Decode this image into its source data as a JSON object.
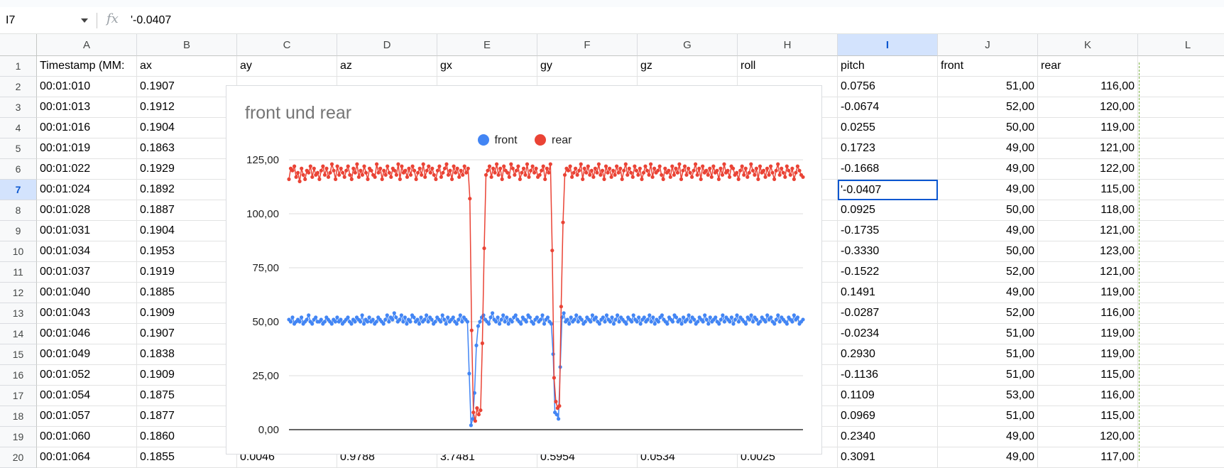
{
  "formula_bar": {
    "name_box": "I7",
    "fx_icon": "fx",
    "value": "'-0.0407"
  },
  "columns": [
    "A",
    "B",
    "C",
    "D",
    "E",
    "F",
    "G",
    "H",
    "I",
    "J",
    "K",
    "L"
  ],
  "selected_column": "I",
  "rows": [
    {
      "n": "1",
      "A": "Timestamp (MM:",
      "B": "ax",
      "C": "ay",
      "D": "az",
      "E": "gx",
      "F": "gy",
      "G": "gz",
      "H": "roll",
      "I": "pitch",
      "J": "front",
      "K": "rear"
    },
    {
      "n": "2",
      "A": "00:01:010",
      "B": "0.1907",
      "C": "",
      "D": "",
      "E": "",
      "F": "",
      "G": "",
      "H": "",
      "I": "0.0756",
      "J": "51,00",
      "K": "116,00"
    },
    {
      "n": "3",
      "A": "00:01:013",
      "B": "0.1912",
      "C": "",
      "D": "",
      "E": "",
      "F": "",
      "G": "",
      "H": "",
      "I": "-0.0674",
      "J": "52,00",
      "K": "120,00"
    },
    {
      "n": "4",
      "A": "00:01:016",
      "B": "0.1904",
      "C": "",
      "D": "",
      "E": "",
      "F": "",
      "G": "",
      "H": "",
      "I": "0.0255",
      "J": "50,00",
      "K": "119,00"
    },
    {
      "n": "5",
      "A": "00:01:019",
      "B": "0.1863",
      "C": "",
      "D": "",
      "E": "",
      "F": "",
      "G": "",
      "H": "",
      "I": "0.1723",
      "J": "49,00",
      "K": "121,00"
    },
    {
      "n": "6",
      "A": "00:01:022",
      "B": "0.1929",
      "C": "",
      "D": "",
      "E": "",
      "F": "",
      "G": "",
      "H": "",
      "I": "-0.1668",
      "J": "49,00",
      "K": "122,00"
    },
    {
      "n": "7",
      "A": "00:01:024",
      "B": "0.1892",
      "C": "",
      "D": "",
      "E": "",
      "F": "",
      "G": "",
      "H": "",
      "I": "'-0.0407",
      "J": "49,00",
      "K": "115,00"
    },
    {
      "n": "8",
      "A": "00:01:028",
      "B": "0.1887",
      "C": "",
      "D": "",
      "E": "",
      "F": "",
      "G": "",
      "H": "",
      "I": "0.0925",
      "J": "50,00",
      "K": "118,00"
    },
    {
      "n": "9",
      "A": "00:01:031",
      "B": "0.1904",
      "C": "",
      "D": "",
      "E": "",
      "F": "",
      "G": "",
      "H": "",
      "I": "-0.1735",
      "J": "49,00",
      "K": "121,00"
    },
    {
      "n": "10",
      "A": "00:01:034",
      "B": "0.1953",
      "C": "",
      "D": "",
      "E": "",
      "F": "",
      "G": "",
      "H": "",
      "I": "-0.3330",
      "J": "50,00",
      "K": "123,00"
    },
    {
      "n": "11",
      "A": "00:01:037",
      "B": "0.1919",
      "C": "",
      "D": "",
      "E": "",
      "F": "",
      "G": "",
      "H": "",
      "I": "-0.1522",
      "J": "52,00",
      "K": "121,00"
    },
    {
      "n": "12",
      "A": "00:01:040",
      "B": "0.1885",
      "C": "",
      "D": "",
      "E": "",
      "F": "",
      "G": "",
      "H": "",
      "I": "0.1491",
      "J": "49,00",
      "K": "119,00"
    },
    {
      "n": "13",
      "A": "00:01:043",
      "B": "0.1909",
      "C": "",
      "D": "",
      "E": "",
      "F": "",
      "G": "",
      "H": "",
      "I": "-0.0287",
      "J": "52,00",
      "K": "116,00"
    },
    {
      "n": "14",
      "A": "00:01:046",
      "B": "0.1907",
      "C": "",
      "D": "",
      "E": "",
      "F": "",
      "G": "",
      "H": "",
      "I": "-0.0234",
      "J": "51,00",
      "K": "119,00"
    },
    {
      "n": "15",
      "A": "00:01:049",
      "B": "0.1838",
      "C": "",
      "D": "",
      "E": "",
      "F": "",
      "G": "",
      "H": "",
      "I": "0.2930",
      "J": "51,00",
      "K": "119,00"
    },
    {
      "n": "16",
      "A": "00:01:052",
      "B": "0.1909",
      "C": "",
      "D": "",
      "E": "",
      "F": "",
      "G": "",
      "H": "",
      "I": "-0.1136",
      "J": "51,00",
      "K": "115,00"
    },
    {
      "n": "17",
      "A": "00:01:054",
      "B": "0.1875",
      "C": "",
      "D": "",
      "E": "",
      "F": "",
      "G": "",
      "H": "",
      "I": "0.1109",
      "J": "53,00",
      "K": "116,00"
    },
    {
      "n": "18",
      "A": "00:01:057",
      "B": "0.1877",
      "C": "",
      "D": "",
      "E": "",
      "F": "",
      "G": "",
      "H": "",
      "I": "0.0969",
      "J": "51,00",
      "K": "115,00"
    },
    {
      "n": "19",
      "A": "00:01:060",
      "B": "0.1860",
      "C": "",
      "D": "",
      "E": "",
      "F": "",
      "G": "",
      "H": "",
      "I": "0.2340",
      "J": "49,00",
      "K": "120,00"
    },
    {
      "n": "20",
      "A": "00:01:064",
      "B": "0.1855",
      "C": "0.0046",
      "D": "0.9788",
      "E": "3.7481",
      "F": "0.5954",
      "G": "0.0534",
      "H": "0.0025",
      "I": "0.3091",
      "J": "49,00",
      "K": "117,00"
    }
  ],
  "active_cell": {
    "row": "7",
    "col": "I"
  },
  "colors": {
    "front": "#4285f4",
    "rear": "#ea4335",
    "selection": "#0b57d0"
  },
  "chart_data": {
    "type": "line",
    "title": "front und rear",
    "legend_position": "top",
    "y_ticks": [
      "0,00",
      "25,00",
      "50,00",
      "75,00",
      "100,00",
      "125,00"
    ],
    "ylim": [
      0,
      125
    ],
    "grid": true,
    "series": [
      {
        "name": "front",
        "values": [
          51,
          50,
          52,
          49,
          50,
          51,
          50,
          52,
          49,
          50,
          51,
          53,
          50,
          49,
          51,
          52,
          50,
          50,
          51,
          49,
          50,
          52,
          51,
          50,
          49,
          51,
          50,
          52,
          50,
          51,
          49,
          50,
          51,
          52,
          50,
          49,
          51,
          50,
          52,
          51,
          50,
          53,
          49,
          51,
          50,
          52,
          50,
          51,
          49,
          50,
          52,
          51,
          50,
          49,
          51,
          53,
          50,
          52,
          51,
          54,
          52,
          50,
          51,
          53,
          50,
          52,
          49,
          51,
          50,
          53,
          52,
          50,
          51,
          49,
          52,
          50,
          51,
          53,
          50,
          52,
          51,
          49,
          50,
          52,
          51,
          50,
          53,
          51,
          49,
          52,
          50,
          51,
          52,
          50,
          49,
          51,
          53,
          50,
          52,
          51,
          50,
          26,
          2,
          5,
          17,
          39,
          48,
          50,
          52,
          53,
          51,
          50,
          49,
          52,
          54,
          51,
          50,
          52,
          49,
          51,
          53,
          50,
          52,
          49,
          51,
          50,
          52,
          53,
          51,
          50,
          49,
          52,
          51,
          50,
          53,
          52,
          50,
          49,
          51,
          52,
          50,
          51,
          53,
          49,
          51,
          52,
          50,
          49,
          35,
          8,
          7,
          5,
          29,
          52,
          54,
          50,
          51,
          49,
          52,
          50,
          51,
          53,
          50,
          52,
          51,
          49,
          50,
          52,
          51,
          50,
          53,
          51,
          52,
          50,
          49,
          51,
          52,
          50,
          53,
          51,
          50,
          52,
          49,
          51,
          53,
          50,
          52,
          51,
          50,
          49,
          52,
          51,
          50,
          53,
          51,
          50,
          52,
          49,
          51,
          52,
          50,
          51,
          53,
          50,
          52,
          49,
          51,
          50,
          52,
          53,
          51,
          50,
          49,
          52,
          51,
          50,
          53,
          52,
          50,
          51,
          49,
          52,
          50,
          51,
          53,
          50,
          52,
          51,
          49,
          50,
          52,
          51,
          50,
          53,
          51,
          49,
          52,
          50,
          51,
          52,
          50,
          49,
          51,
          53,
          50,
          52,
          51,
          50,
          52,
          49,
          51,
          53,
          50,
          52,
          51,
          50,
          49,
          52,
          51,
          53,
          50,
          52,
          51,
          49,
          50,
          52,
          51,
          50,
          53,
          51,
          52,
          50,
          49,
          51,
          53,
          50,
          52,
          51,
          50,
          49,
          52,
          51,
          50,
          53,
          51,
          52,
          49,
          50,
          51
        ]
      },
      {
        "name": "rear",
        "values": [
          116,
          121,
          120,
          122,
          117,
          119,
          115,
          121,
          118,
          116,
          120,
          119,
          122,
          117,
          121,
          118,
          119,
          116,
          120,
          122,
          118,
          121,
          117,
          119,
          123,
          120,
          116,
          122,
          118,
          121,
          119,
          117,
          120,
          122,
          118,
          116,
          121,
          119,
          123,
          117,
          120,
          118,
          122,
          119,
          116,
          121,
          120,
          118,
          117,
          123,
          119,
          121,
          116,
          120,
          118,
          122,
          119,
          117,
          121,
          120,
          118,
          123,
          116,
          122,
          119,
          120,
          117,
          121,
          118,
          122,
          120,
          116,
          119,
          121,
          118,
          123,
          117,
          120,
          122,
          119,
          121,
          118,
          116,
          120,
          122,
          117,
          119,
          121,
          123,
          118,
          120,
          116,
          122,
          119,
          121,
          117,
          120,
          118,
          122,
          119,
          121,
          107,
          46,
          8,
          4,
          10,
          7,
          9,
          40,
          84,
          118,
          120,
          122,
          117,
          121,
          119,
          123,
          118,
          121,
          116,
          122,
          120,
          119,
          117,
          123,
          121,
          118,
          120,
          122,
          116,
          119,
          121,
          118,
          123,
          117,
          120,
          122,
          119,
          121,
          117,
          118,
          120,
          122,
          116,
          121,
          119,
          123,
          83,
          24,
          13,
          10,
          11,
          57,
          96,
          118,
          121,
          120,
          122,
          117,
          119,
          121,
          118,
          120,
          123,
          116,
          121,
          119,
          122,
          118,
          120,
          117,
          121,
          119,
          123,
          118,
          120,
          116,
          122,
          119,
          121,
          117,
          120,
          118,
          122,
          119,
          121,
          116,
          120,
          123,
          118,
          121,
          119,
          117,
          122,
          120,
          118,
          121,
          116,
          119,
          122,
          120,
          118,
          123,
          117,
          121,
          119,
          120,
          122,
          118,
          116,
          121,
          119,
          120,
          117,
          122,
          118,
          121,
          119,
          123,
          116,
          120,
          122,
          118,
          121,
          119,
          117,
          120,
          123,
          118,
          121,
          116,
          122,
          119,
          120,
          118,
          121,
          117,
          122,
          119,
          120,
          116,
          121,
          118,
          123,
          119,
          120,
          117,
          122,
          121,
          118,
          119,
          116,
          120,
          122,
          118,
          121,
          117,
          119,
          123,
          120,
          118,
          121,
          116,
          122,
          119,
          120,
          117,
          121,
          118,
          122,
          119,
          116,
          120,
          123,
          118,
          121,
          119,
          117,
          122,
          120,
          118,
          121,
          116,
          119,
          122,
          120,
          118,
          117
        ]
      }
    ]
  }
}
